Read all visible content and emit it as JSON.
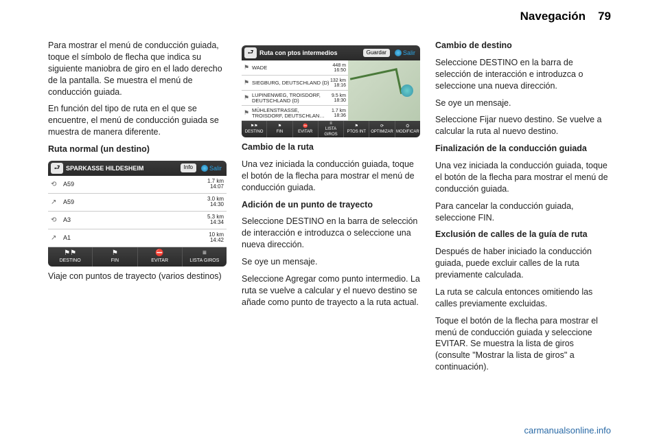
{
  "header": {
    "title": "Navegación",
    "page": "79"
  },
  "col1": {
    "p1": "Para mostrar el menú de conducción guiada, toque el símbolo de flecha que indica su siguiente maniobra de giro en el lado derecho de la pantalla. Se muestra el menú de conducción guiada.",
    "p2": "En función del tipo de ruta en el que se encuentre, el menú de conducción guiada se muestra de manera diferente.",
    "sub1": "Ruta normal (un destino)",
    "caption": "Viaje con puntos de trayecto (varios destinos)"
  },
  "nav1": {
    "title": "SPARKASSE HILDESHEIM",
    "info_btn": "Info",
    "salir": "Salir",
    "rows": [
      {
        "icon": "⟲",
        "label": "A59",
        "dist": "1.7 km",
        "time": "14:07"
      },
      {
        "icon": "↗",
        "label": "A59",
        "dist": "3.0 km",
        "time": "14:30"
      },
      {
        "icon": "⟲",
        "label": "A3",
        "dist": "5.3 km",
        "time": "14:34"
      },
      {
        "icon": "↗",
        "label": "A1",
        "dist": "10 km",
        "time": "14:42"
      }
    ],
    "bottom": [
      "DESTINO",
      "FIN",
      "EVITAR",
      "LISTA GIROS"
    ],
    "icons": [
      "⚑⚑",
      "⚑",
      "⛔",
      "≡"
    ]
  },
  "nav2": {
    "title": "Ruta con ptos intermedios",
    "guardar_btn": "Guardar",
    "salir": "Salir",
    "rows": [
      {
        "icon": "⚑",
        "label": "WADE",
        "dist": "448 m",
        "time": "16:50"
      },
      {
        "icon": "⚑",
        "label": "SIEGBURG, DEUTSCHLAND (D)",
        "dist": "132 km",
        "time": "18:16"
      },
      {
        "icon": "⚑",
        "label": "LUPINENWEG, TROISDORF, DEUTSCHLAND (D)",
        "dist": "9.5 km",
        "time": "18:30"
      },
      {
        "icon": "⚑",
        "label": "MÜHLENSTRASSE, TROISDORF, DEUTSCHLAN…",
        "dist": "1.7 km",
        "time": "18:36"
      }
    ],
    "bottom": [
      "DESTINO",
      "FIN",
      "EVITAR",
      "LISTA GIROS",
      "PTOS INT",
      "OPTIMIZAR",
      "MODIFICAR"
    ],
    "icons": [
      "⚑⚑",
      "⚑",
      "⛔",
      "≡",
      "⚑",
      "⟳",
      "⛭"
    ]
  },
  "col2": {
    "h1": "Cambio de la ruta",
    "p1": "Una vez iniciada la conducción guiada, toque el botón de la flecha para mostrar el menú de conducción guiada.",
    "h2": "Adición de un punto de trayecto",
    "p2": "Seleccione DESTINO en la barra de selección de interacción e introduzca o seleccione una nueva dirección.",
    "p3": "Se oye un mensaje.",
    "p4": "Seleccione Agregar como punto intermedio. La ruta se vuelve a calcular y el nuevo destino se añade como punto de trayecto a la ruta actual."
  },
  "col3": {
    "h1": "Cambio de destino",
    "p1": "Seleccione DESTINO en la barra de selección de interacción e introduzca o seleccione una nueva dirección.",
    "p2": "Se oye un mensaje.",
    "p3": "Seleccione Fijar nuevo destino. Se vuelve a calcular la ruta al nuevo destino.",
    "h2": "Finalización de la conducción guiada",
    "p4": "Una vez iniciada la conducción guiada, toque el botón de la flecha para mostrar el menú de conducción guiada.",
    "p5": "Para cancelar la conducción guiada, seleccione FIN.",
    "h3": "Exclusión de calles de la guía de ruta",
    "p6": "Después de haber iniciado la conducción guiada, puede excluir calles de la ruta previamente calculada.",
    "p7": "La ruta se calcula entonces omitiendo las calles previamente excluidas.",
    "p8": "Toque el botón de la flecha para mostrar el menú de conducción guiada y seleccione EVITAR. Se muestra la lista de giros (consulte \"Mostrar la lista de giros\" a continuación)."
  },
  "footer": "carmanualsonline.info",
  "colors": {
    "page_bg": "#ffffff",
    "text": "#222222",
    "link": "#2a6aa6",
    "nav_dark": "#2a2a2a",
    "salir_blue": "#2aa3e4"
  }
}
